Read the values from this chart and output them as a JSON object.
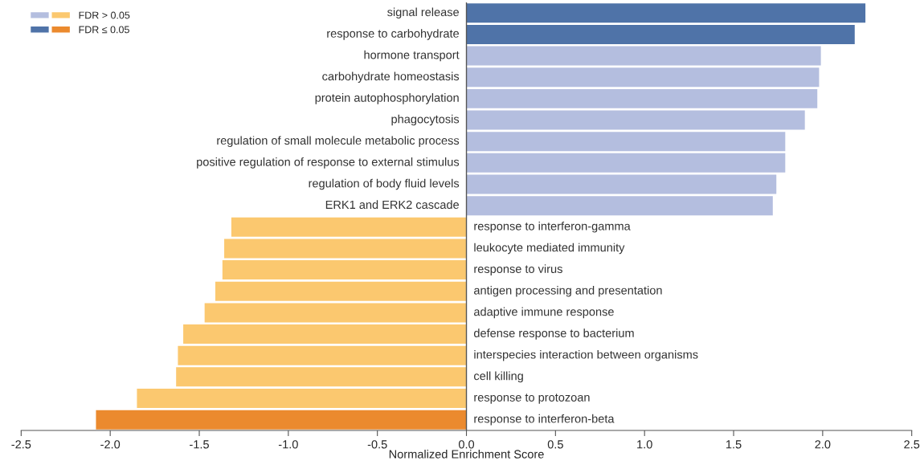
{
  "chart_data": {
    "type": "bar",
    "orientation": "horizontal",
    "xlabel": "Normalized Enrichment Score",
    "categories": [
      "signal release",
      "response to carbohydrate",
      "hormone transport",
      "carbohydrate homeostasis",
      "protein autophosphorylation",
      "phagocytosis",
      "regulation of small molecule metabolic process",
      "positive regulation of response to external stimulus",
      "regulation of body fluid levels",
      "ERK1 and ERK2 cascade",
      "response to interferon-gamma",
      "leukocyte mediated immunity",
      "response to virus",
      "antigen processing and presentation",
      "adaptive immune response",
      "defense response to bacterium",
      "interspecies interaction between organisms",
      "cell killing",
      "response to protozoan",
      "response to interferon-beta"
    ],
    "series": [
      {
        "name": "FDR > 0.05",
        "values": [
          null,
          null,
          1.99,
          1.98,
          1.97,
          1.9,
          1.79,
          1.79,
          1.74,
          1.72,
          -1.32,
          -1.36,
          -1.37,
          -1.41,
          -1.47,
          -1.59,
          -1.62,
          -1.63,
          -1.85,
          null
        ],
        "colors": [
          null,
          null,
          "#b4bedf",
          "#b4bedf",
          "#b4bedf",
          "#b4bedf",
          "#b4bedf",
          "#b4bedf",
          "#b4bedf",
          "#b4bedf",
          "#fbc86f",
          "#fbc86f",
          "#fbc86f",
          "#fbc86f",
          "#fbc86f",
          "#fbc86f",
          "#fbc86f",
          "#fbc86f",
          "#fbc86f",
          null
        ]
      },
      {
        "name": "FDR ≤ 0.05",
        "values": [
          2.24,
          2.18,
          null,
          null,
          null,
          null,
          null,
          null,
          null,
          null,
          null,
          null,
          null,
          null,
          null,
          null,
          null,
          null,
          null,
          -2.08
        ],
        "colors": [
          "#4f73a8",
          "#4f73a8",
          null,
          null,
          null,
          null,
          null,
          null,
          null,
          null,
          null,
          null,
          null,
          null,
          null,
          null,
          null,
          null,
          null,
          "#eb8a2e"
        ]
      }
    ],
    "xlim": [
      -2.5,
      2.5
    ],
    "xticks": [
      {
        "value": -2.5,
        "label": "-2.5"
      },
      {
        "value": -2.0,
        "label": "-2.0"
      },
      {
        "value": -1.5,
        "label": "-1.5"
      },
      {
        "value": -1.0,
        "label": "-1.0"
      },
      {
        "value": -0.5,
        "label": "-0.5"
      },
      {
        "value": 0,
        "label": "0.0"
      },
      {
        "value": 0.5,
        "label": "0.5"
      },
      {
        "value": 1.0,
        "label": "1.0"
      },
      {
        "value": 1.5,
        "label": "1.5"
      },
      {
        "value": 2.0,
        "label": "2.0"
      },
      {
        "value": 2.5,
        "label": "2.5"
      }
    ],
    "grid": false,
    "legend": "top left"
  }
}
